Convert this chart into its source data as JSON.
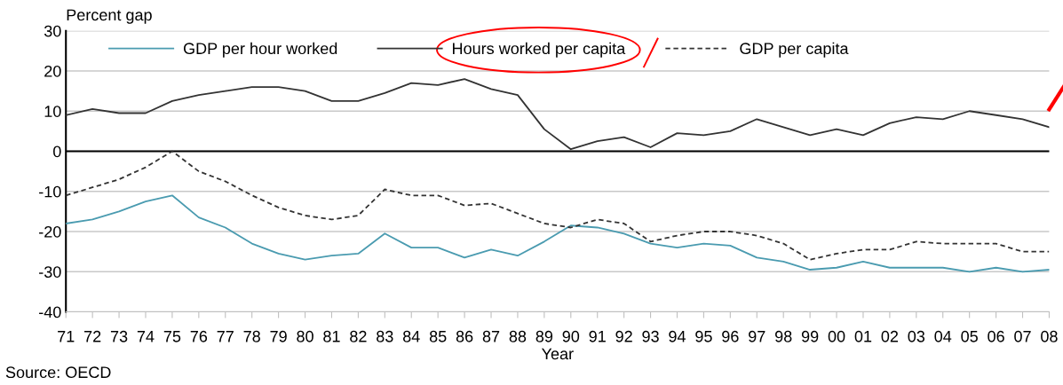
{
  "chart_data": {
    "type": "line",
    "ylabel": "Percent gap",
    "xlabel": "Year",
    "categories": [
      "71",
      "72",
      "73",
      "74",
      "75",
      "76",
      "77",
      "78",
      "79",
      "80",
      "81",
      "82",
      "83",
      "84",
      "85",
      "86",
      "87",
      "88",
      "89",
      "90",
      "91",
      "92",
      "93",
      "94",
      "95",
      "96",
      "97",
      "98",
      "99",
      "00",
      "01",
      "02",
      "03",
      "04",
      "05",
      "06",
      "07",
      "08"
    ],
    "series": [
      {
        "name": "GDP per hour worked",
        "color": "#4a9bb0",
        "line_style": "solid",
        "values": [
          -18,
          -17,
          -15,
          -12.5,
          -11,
          -16.5,
          -19,
          -23,
          -25.5,
          -27,
          -26,
          -25.5,
          -20.5,
          -24,
          -24,
          -26.5,
          -24.5,
          -26,
          -22.5,
          -18.5,
          -19,
          -20.5,
          -23,
          -24,
          -23,
          -23.5,
          -26.5,
          -27.5,
          -29.5,
          -29,
          -27.5,
          -29,
          -29,
          -29,
          -30,
          -29,
          -30,
          -29.5
        ]
      },
      {
        "name": "Hours worked per capita",
        "color": "#333333",
        "line_style": "solid",
        "values": [
          9,
          10.5,
          9.5,
          9.5,
          12.5,
          14,
          15,
          16,
          16,
          15,
          12.5,
          12.5,
          14.5,
          17,
          16.5,
          18,
          15.5,
          14,
          5.5,
          0.5,
          2.5,
          3.5,
          1,
          4.5,
          4,
          5,
          8,
          6,
          4,
          5.5,
          4,
          7,
          8.5,
          8,
          10,
          9,
          8,
          6
        ]
      },
      {
        "name": "GDP per capita",
        "color": "#333333",
        "line_style": "dashed",
        "values": [
          -11,
          -9,
          -7,
          -4,
          0,
          -5,
          -7.5,
          -11,
          -14,
          -16,
          -17,
          -16,
          -9.5,
          -11,
          -11,
          -13.5,
          -13,
          -15.5,
          -18,
          -19,
          -17,
          -18,
          -22.5,
          -21,
          -20,
          -20,
          -21,
          -23,
          -27,
          -25.5,
          -24.5,
          -24.5,
          -22.5,
          -23,
          -23,
          -23,
          -25,
          -25
        ]
      }
    ],
    "ylim": [
      -40,
      30
    ],
    "yticks": [
      -40,
      -30,
      -20,
      -10,
      0,
      10,
      20,
      30
    ],
    "grid": "y",
    "legend": "top",
    "marker": "none",
    "ref_lines": [
      {
        "axis": "y",
        "value": 0,
        "color": "#000000",
        "line_style": "solid"
      }
    ],
    "annotations": [
      "Source: OECD"
    ]
  }
}
